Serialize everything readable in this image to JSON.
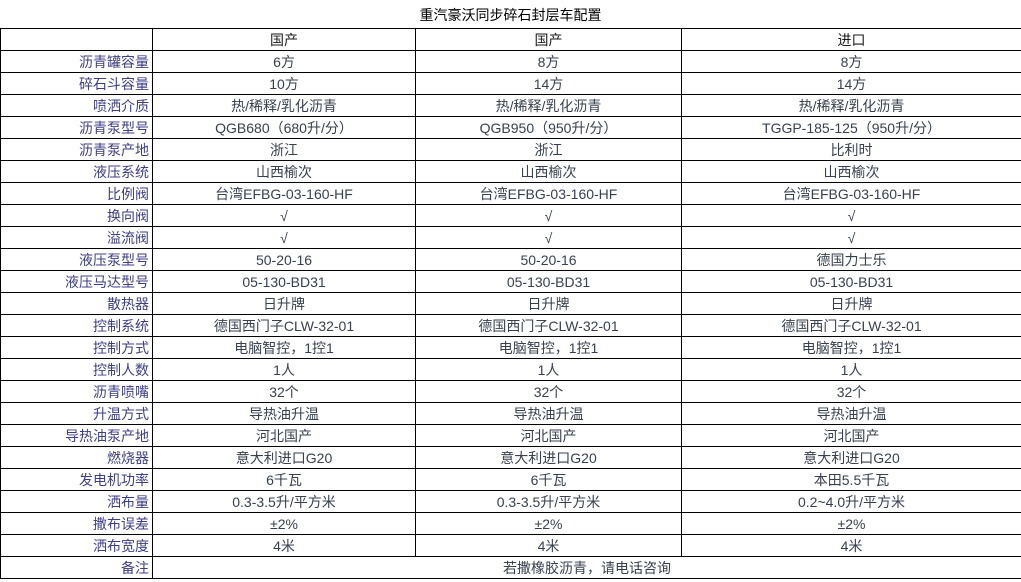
{
  "title": "重汽豪沃同步碎石封层车配置",
  "colors": {
    "border": "#000000",
    "background": "#ffffff",
    "title_text": "#000000",
    "header_text": "#1a1a1a",
    "label_text": "#3b3e85",
    "value_text": "#37404f"
  },
  "table": {
    "columns": [
      "",
      "国产",
      "国产",
      "进口"
    ],
    "rows": [
      {
        "label": "沥青罐容量",
        "values": [
          "6方",
          "8方",
          "8方"
        ]
      },
      {
        "label": "碎石斗容量",
        "values": [
          "10方",
          "14方",
          "14方"
        ]
      },
      {
        "label": "喷洒介质",
        "values": [
          "热/稀释/乳化沥青",
          "热/稀释/乳化沥青",
          "热/稀释/乳化沥青"
        ]
      },
      {
        "label": "沥青泵型号",
        "values": [
          "QGB680（680升/分）",
          "QGB950（950升/分）",
          "TGGP-185-125（950升/分）"
        ]
      },
      {
        "label": "沥青泵产地",
        "values": [
          "浙江",
          "浙江",
          "比利时"
        ]
      },
      {
        "label": "液压系统",
        "values": [
          "山西榆次",
          "山西榆次",
          "山西榆次"
        ]
      },
      {
        "label": "比例阀",
        "values": [
          "台湾EFBG-03-160-HF",
          "台湾EFBG-03-160-HF",
          "台湾EFBG-03-160-HF"
        ]
      },
      {
        "label": "换向阀",
        "values": [
          "√",
          "√",
          "√"
        ]
      },
      {
        "label": "溢流阀",
        "values": [
          "√",
          "√",
          "√"
        ]
      },
      {
        "label": "液压泵型号",
        "values": [
          "50-20-16",
          "50-20-16",
          "德国力士乐"
        ]
      },
      {
        "label": "液压马达型号",
        "values": [
          "05-130-BD31",
          "05-130-BD31",
          "05-130-BD31"
        ]
      },
      {
        "label": "散热器",
        "values": [
          "日升牌",
          "日升牌",
          "日升牌"
        ]
      },
      {
        "label": "控制系统",
        "values": [
          "德国西门子CLW-32-01",
          "德国西门子CLW-32-01",
          "德国西门子CLW-32-01"
        ]
      },
      {
        "label": "控制方式",
        "values": [
          "电脑智控，1控1",
          "电脑智控，1控1",
          "电脑智控，1控1"
        ]
      },
      {
        "label": "控制人数",
        "values": [
          "1人",
          "1人",
          "1人"
        ]
      },
      {
        "label": "沥青喷嘴",
        "values": [
          "32个",
          "32个",
          "32个"
        ]
      },
      {
        "label": "升温方式",
        "values": [
          "导热油升温",
          "导热油升温",
          "导热油升温"
        ]
      },
      {
        "label": "导热油泵产地",
        "values": [
          "河北国产",
          "河北国产",
          "河北国产"
        ]
      },
      {
        "label": "燃烧器",
        "values": [
          "意大利进口G20",
          "意大利进口G20",
          "意大利进口G20"
        ]
      },
      {
        "label": "发电机功率",
        "values": [
          "6千瓦",
          "6千瓦",
          "本田5.5千瓦"
        ]
      },
      {
        "label": "洒布量",
        "values": [
          "0.3-3.5升/平方米",
          "0.3-3.5升/平方米",
          "0.2~4.0升/平方米"
        ]
      },
      {
        "label": "撒布误差",
        "values": [
          "±2%",
          "±2%",
          "±2%"
        ]
      },
      {
        "label": "洒布宽度",
        "values": [
          "4米",
          "4米",
          "4米"
        ]
      }
    ],
    "footer": {
      "label": "备注",
      "value": "若撒橡胶沥青，请电话咨询"
    }
  }
}
